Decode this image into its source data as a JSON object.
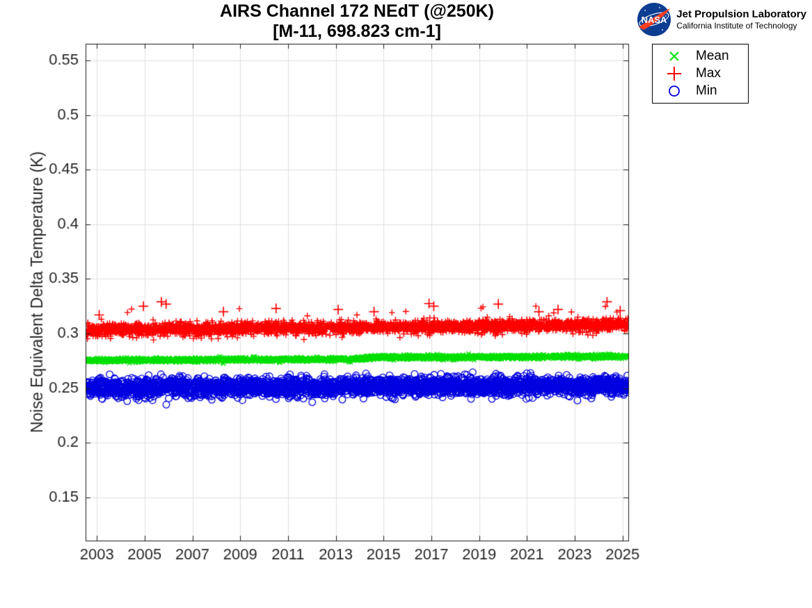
{
  "header": {
    "title_line1": "AIRS Channel 172 NEdT (@250K)",
    "title_line2": "[M-11, 698.823 cm-1]"
  },
  "branding": {
    "nasa_logo_text": "NASA",
    "org_name": "Jet Propulsion Laboratory",
    "org_sub": "California Institute of Technology",
    "logo_blue": "#0B3D91",
    "logo_red": "#FC3D21"
  },
  "chart_data": {
    "type": "scatter",
    "title": "AIRS Channel 172 NEdT (@250K)",
    "subtitle": "[M-11, 698.823 cm-1]",
    "xlabel": "",
    "ylabel": "Noise Equivalent Delta Temperature (K)",
    "xlim": [
      2002.53,
      2025.24
    ],
    "ylim": [
      0.1104,
      0.5653
    ],
    "x_ticks": [
      2003,
      2005,
      2007,
      2009,
      2011,
      2013,
      2015,
      2017,
      2019,
      2021,
      2023,
      2025
    ],
    "x_tick_labels": [
      "2003",
      "2005",
      "2007",
      "2009",
      "2011",
      "2013",
      "2015",
      "2017",
      "2019",
      "2021",
      "2023",
      "2025"
    ],
    "y_ticks": [
      0.15,
      0.2,
      0.25,
      0.3,
      0.35,
      0.4,
      0.45,
      0.5,
      0.55
    ],
    "y_tick_labels": [
      "0.15",
      "0.2",
      "0.25",
      "0.3",
      "0.35",
      "0.4",
      "0.45",
      "0.5",
      "0.55"
    ],
    "grid": true,
    "grid_color": "#E0E0E0",
    "axis_color": "#1A1A1A",
    "tick_label_color": "#262626",
    "legend": {
      "position": "upper-right-outside",
      "entries": [
        {
          "label": "Mean",
          "marker": "x",
          "color": "#00E000"
        },
        {
          "label": "Max",
          "marker": "+",
          "color": "#FF0000"
        },
        {
          "label": "Min",
          "marker": "o",
          "color": "#0000E0"
        }
      ]
    },
    "series": [
      {
        "name": "Max",
        "marker": "+",
        "color": "#FF0000",
        "marker_px": 9,
        "n_points_approx": 3200,
        "trend": {
          "x_start": 2002.55,
          "y_start": 0.3033,
          "x_end": 2025.23,
          "y_end": 0.3082
        },
        "spread_sigma": 0.0027,
        "approx_range": [
          0.294,
          0.318
        ],
        "notable_outliers": [
          [
            2003.1,
            0.317
          ],
          [
            2004.95,
            0.325
          ],
          [
            2005.7,
            0.329
          ],
          [
            2005.9,
            0.327
          ],
          [
            2008.3,
            0.32
          ],
          [
            2010.5,
            0.323
          ],
          [
            2013.1,
            0.322
          ],
          [
            2014.6,
            0.32
          ],
          [
            2016.9,
            0.3275
          ],
          [
            2017.1,
            0.325
          ],
          [
            2019.8,
            0.327
          ],
          [
            2021.5,
            0.32
          ],
          [
            2022.3,
            0.322
          ],
          [
            2024.35,
            0.329
          ],
          [
            2024.9,
            0.321
          ]
        ]
      },
      {
        "name": "Mean",
        "marker": "x",
        "color": "#00E000",
        "marker_px": 7,
        "n_points_approx": 3200,
        "trend": {
          "x_start": 2002.55,
          "y_start": 0.2753,
          "x_end": 2025.23,
          "y_end": 0.2779,
          "step_at_x": 2014.2,
          "step_dy": 0.0013
        },
        "spread_sigma": 0.0009,
        "approx_range": [
          0.272,
          0.282
        ]
      },
      {
        "name": "Min",
        "marker": "o",
        "color": "#0000E0",
        "marker_px": 10,
        "n_points_approx": 3200,
        "trend": {
          "x_start": 2002.55,
          "y_start": 0.2505,
          "x_end": 2025.23,
          "y_end": 0.2525
        },
        "spread_sigma": 0.0038,
        "approx_range": [
          0.24,
          0.264
        ]
      }
    ]
  }
}
